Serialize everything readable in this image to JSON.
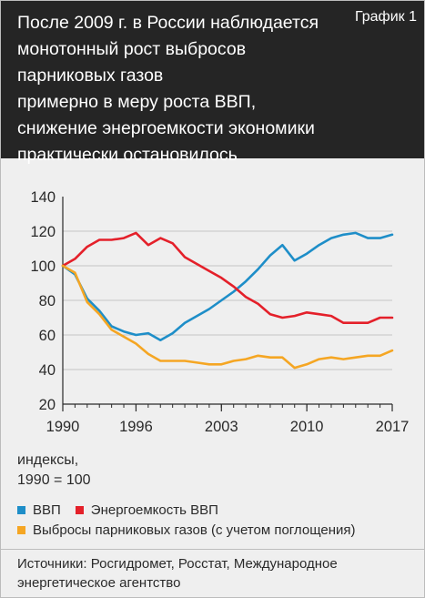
{
  "header": {
    "title_lines": [
      "После 2009 г. в России наблюдается",
      "монотонный рост выбросов парниковых газов",
      "примерно в меру роста ВВП,",
      "снижение энергоемкости экономики",
      "практически остановилось"
    ],
    "badge": "График 1"
  },
  "units_lines": [
    "индексы,",
    "1990 = 100"
  ],
  "source_lines": [
    "Источники: Росгидромет, Росстат, Международное",
    "энергетическое агентство"
  ],
  "chart_data": {
    "type": "line",
    "ylim": [
      20,
      140
    ],
    "xlim": [
      1990,
      2017
    ],
    "y_ticks": [
      "140",
      "120",
      "100",
      "80",
      "60",
      "40",
      "20"
    ],
    "x_ticks": [
      "1990",
      "1996",
      "2003",
      "2010",
      "2017"
    ],
    "grid": true,
    "legend_position": "bottom",
    "series": [
      {
        "name": "ВВП",
        "color": "#1e8ec8",
        "x": [
          1990,
          1991,
          1992,
          1993,
          1994,
          1995,
          1996,
          1997,
          1998,
          1999,
          2000,
          2001,
          2002,
          2003,
          2004,
          2005,
          2006,
          2007,
          2008,
          2009,
          2010,
          2011,
          2012,
          2013,
          2014,
          2015,
          2016,
          2017
        ],
        "y": [
          100,
          95,
          81,
          74,
          65,
          62,
          60,
          61,
          57,
          61,
          67,
          71,
          75,
          80,
          85,
          91,
          98,
          106,
          112,
          103,
          107,
          112,
          116,
          118,
          119,
          116,
          116,
          118
        ]
      },
      {
        "name": "Энергоемкость ВВП",
        "color": "#e4202a",
        "x": [
          1990,
          1991,
          1992,
          1993,
          1994,
          1995,
          1996,
          1997,
          1998,
          1999,
          2000,
          2001,
          2002,
          2003,
          2004,
          2005,
          2006,
          2007,
          2008,
          2009,
          2010,
          2011,
          2012,
          2013,
          2014,
          2015,
          2016,
          2017
        ],
        "y": [
          100,
          104,
          111,
          115,
          115,
          116,
          119,
          112,
          116,
          113,
          105,
          101,
          97,
          93,
          88,
          82,
          78,
          72,
          70,
          71,
          73,
          72,
          71,
          67,
          67,
          67,
          70,
          70
        ]
      },
      {
        "name": "Выбросы парниковых газов (с учетом поглощения)",
        "color": "#f5a623",
        "x": [
          1990,
          1991,
          1992,
          1993,
          1994,
          1995,
          1996,
          1997,
          1998,
          1999,
          2000,
          2001,
          2002,
          2003,
          2004,
          2005,
          2006,
          2007,
          2008,
          2009,
          2010,
          2011,
          2012,
          2013,
          2014,
          2015,
          2016,
          2017
        ],
        "y": [
          100,
          96,
          79,
          72,
          63,
          59,
          55,
          49,
          45,
          45,
          45,
          44,
          43,
          43,
          45,
          46,
          48,
          47,
          47,
          41,
          43,
          46,
          47,
          46,
          47,
          48,
          48,
          51
        ]
      }
    ]
  }
}
